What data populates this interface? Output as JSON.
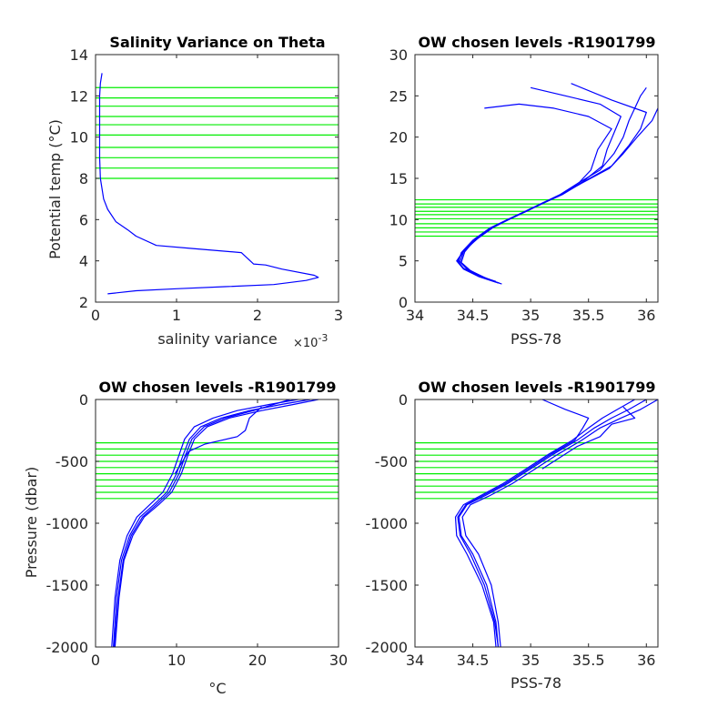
{
  "figure": {
    "colors": {
      "profile": "#0000ff",
      "levels": "#00ee00",
      "axes": "#262626"
    }
  },
  "chart_data": [
    {
      "id": "p1",
      "type": "line",
      "title": "Salinity Variance on Theta",
      "xlabel": "salinity variance",
      "x_multiplier": "×10",
      "x_multiplier_exp": "-3",
      "ylabel": "Potential temp (°C)",
      "xlim": [
        0,
        3
      ],
      "ylim": [
        2,
        14
      ],
      "xticks": [
        0,
        1,
        2,
        3
      ],
      "yticks": [
        2,
        4,
        6,
        8,
        10,
        12,
        14
      ],
      "chosen_levels": [
        8.0,
        8.5,
        9.0,
        9.5,
        10.1,
        10.6,
        11.0,
        11.5,
        11.9,
        12.4
      ],
      "series": [
        {
          "x": [
            0.15,
            0.5,
            1.0,
            1.6,
            2.2,
            2.6,
            2.75,
            2.7,
            2.3,
            2.1,
            1.95,
            1.8,
            1.2,
            0.75,
            0.5,
            0.4,
            0.25,
            0.15,
            0.1,
            0.06,
            0.05,
            0.05,
            0.05,
            0.05,
            0.06,
            0.08
          ],
          "y": [
            2.4,
            2.55,
            2.65,
            2.75,
            2.85,
            3.05,
            3.2,
            3.3,
            3.6,
            3.8,
            3.85,
            4.4,
            4.6,
            4.75,
            5.2,
            5.5,
            5.9,
            6.5,
            7.0,
            8.0,
            9.0,
            10.0,
            11.0,
            12.0,
            12.6,
            13.1
          ]
        }
      ]
    },
    {
      "id": "p2",
      "type": "line",
      "title": "OW chosen levels -R1901799",
      "xlabel": "PSS-78",
      "ylabel": "",
      "xlim": [
        34,
        36.1
      ],
      "ylim": [
        0,
        30
      ],
      "xticks": [
        34,
        34.5,
        35,
        35.5,
        36
      ],
      "yticks": [
        0,
        5,
        10,
        15,
        20,
        25,
        30
      ],
      "chosen_levels": [
        8.0,
        8.5,
        9.0,
        9.5,
        10.1,
        10.6,
        11.0,
        11.5,
        11.9,
        12.4
      ],
      "series": [
        {
          "x": [
            34.72,
            34.6,
            34.45,
            34.38,
            34.4,
            34.5,
            34.65,
            34.8,
            34.95,
            35.1,
            35.25,
            35.42,
            35.6,
            35.72,
            35.8,
            35.85,
            35.9,
            35.95,
            36.0
          ],
          "y": [
            2.3,
            3.0,
            4.0,
            5.0,
            6.0,
            7.5,
            9.0,
            10.0,
            11.0,
            12.0,
            13.0,
            14.5,
            16.0,
            18.0,
            20.0,
            22.0,
            23.5,
            25.0,
            26.0
          ]
        },
        {
          "x": [
            34.7,
            34.55,
            34.42,
            34.37,
            34.42,
            34.55,
            34.68,
            34.82,
            34.97,
            35.12,
            35.28,
            35.45,
            35.62,
            35.66,
            35.72,
            35.78,
            35.6,
            35.3,
            35.0
          ],
          "y": [
            2.5,
            3.2,
            4.1,
            5.0,
            6.2,
            7.8,
            9.1,
            10.1,
            11.1,
            12.1,
            13.1,
            14.6,
            16.5,
            18.5,
            20.5,
            22.5,
            24.0,
            25.0,
            26.0
          ]
        },
        {
          "x": [
            34.75,
            34.62,
            34.48,
            34.4,
            34.43,
            34.52,
            34.66,
            34.81,
            34.96,
            35.11,
            35.26,
            35.44,
            35.68,
            35.8,
            35.92,
            36.05,
            36.1
          ],
          "y": [
            2.2,
            2.8,
            3.8,
            4.8,
            6.1,
            7.6,
            9.0,
            10.0,
            11.0,
            12.0,
            13.0,
            14.4,
            16.2,
            18.0,
            20.0,
            22.0,
            23.5
          ]
        },
        {
          "x": [
            34.7,
            34.55,
            34.42,
            34.36,
            34.41,
            34.52,
            34.66,
            34.8,
            34.96,
            35.1,
            35.26,
            35.42,
            35.52,
            35.58,
            35.7,
            35.5,
            35.2,
            34.9,
            34.6
          ],
          "y": [
            2.4,
            3.1,
            4.0,
            5.0,
            6.0,
            7.7,
            9.0,
            10.0,
            11.0,
            12.0,
            13.0,
            14.5,
            16.0,
            18.5,
            21.0,
            22.5,
            23.5,
            24.0,
            23.5
          ]
        },
        {
          "x": [
            34.73,
            34.6,
            34.47,
            34.39,
            34.42,
            34.53,
            34.67,
            34.81,
            34.96,
            35.11,
            35.27,
            35.46,
            35.7,
            35.85,
            35.95,
            36.0,
            35.7,
            35.35
          ],
          "y": [
            2.3,
            2.9,
            3.9,
            4.9,
            6.1,
            7.6,
            9.0,
            10.0,
            11.0,
            12.0,
            13.0,
            14.6,
            16.5,
            19.0,
            21.0,
            23.0,
            24.5,
            26.5
          ]
        }
      ]
    },
    {
      "id": "p3",
      "type": "line",
      "title": "OW chosen levels -R1901799",
      "xlabel": "°C",
      "ylabel": "Pressure (dbar)",
      "xlim": [
        0,
        30
      ],
      "ylim": [
        -2000,
        0
      ],
      "xticks": [
        0,
        10,
        20,
        30
      ],
      "yticks": [
        -2000,
        -1500,
        -1000,
        -500,
        0
      ],
      "chosen_levels": [
        -350,
        -400,
        -450,
        -500,
        -550,
        -600,
        -650,
        -700,
        -750,
        -800
      ],
      "series": [
        {
          "x": [
            2.2,
            2.6,
            3.2,
            4.2,
            5.5,
            7.2,
            8.8,
            10.0,
            10.8,
            11.6,
            13.0,
            15.5,
            19.0,
            23.0,
            26.5
          ],
          "y": [
            -2000,
            -1600,
            -1300,
            -1100,
            -950,
            -850,
            -750,
            -600,
            -450,
            -320,
            -220,
            -150,
            -90,
            -40,
            0
          ]
        },
        {
          "x": [
            2.4,
            2.9,
            3.5,
            4.6,
            6.0,
            7.8,
            9.4,
            10.6,
            11.4,
            12.2,
            13.8,
            16.5,
            20.5,
            24.5,
            27.5
          ],
          "y": [
            -2000,
            -1600,
            -1300,
            -1100,
            -950,
            -850,
            -750,
            -600,
            -450,
            -320,
            -220,
            -150,
            -90,
            -40,
            0
          ]
        },
        {
          "x": [
            2.0,
            2.4,
            3.0,
            3.9,
            5.1,
            6.7,
            8.3,
            9.5,
            10.3,
            11.0,
            12.2,
            14.5,
            17.5,
            21.5,
            25.0
          ],
          "y": [
            -2000,
            -1600,
            -1300,
            -1100,
            -950,
            -850,
            -750,
            -600,
            -450,
            -320,
            -220,
            -150,
            -90,
            -40,
            0
          ]
        },
        {
          "x": [
            2.3,
            2.8,
            3.4,
            4.4,
            5.8,
            7.5,
            9.1,
            10.3,
            11.1,
            11.9,
            13.4,
            16.0,
            19.5,
            22.0,
            24.0
          ],
          "y": [
            -2000,
            -1600,
            -1300,
            -1100,
            -950,
            -850,
            -750,
            -600,
            -450,
            -320,
            -220,
            -150,
            -90,
            -40,
            0
          ]
        },
        {
          "x": [
            9.8,
            11.5,
            13.5,
            15.5,
            17.5,
            18.5,
            19.0,
            20.5
          ],
          "y": [
            -600,
            -420,
            -360,
            -330,
            -300,
            -250,
            -150,
            -60
          ]
        }
      ]
    },
    {
      "id": "p4",
      "type": "line",
      "title": "OW chosen levels -R1901799",
      "xlabel": "PSS-78",
      "ylabel": "",
      "xlim": [
        34,
        36.1
      ],
      "ylim": [
        -2000,
        0
      ],
      "xticks": [
        34,
        34.5,
        35,
        35.5,
        36
      ],
      "yticks": [
        -2000,
        -1500,
        -1000,
        -500,
        0
      ],
      "chosen_levels": [
        -350,
        -400,
        -450,
        -500,
        -550,
        -600,
        -650,
        -700,
        -750,
        -800
      ],
      "series": [
        {
          "x": [
            34.72,
            34.7,
            34.62,
            34.5,
            34.4,
            34.38,
            34.45,
            34.6,
            34.8,
            35.0,
            35.2,
            35.4,
            35.55,
            35.7,
            35.85,
            36.0
          ],
          "y": [
            -2000,
            -1800,
            -1500,
            -1250,
            -1100,
            -950,
            -850,
            -780,
            -680,
            -560,
            -440,
            -330,
            -230,
            -150,
            -80,
            0
          ]
        },
        {
          "x": [
            34.7,
            34.68,
            34.58,
            34.45,
            34.36,
            34.35,
            34.42,
            34.56,
            34.76,
            34.96,
            35.16,
            35.36,
            35.5,
            35.62,
            35.75,
            35.9
          ],
          "y": [
            -2000,
            -1800,
            -1500,
            -1250,
            -1100,
            -950,
            -850,
            -780,
            -680,
            -560,
            -440,
            -330,
            -230,
            -150,
            -80,
            0
          ]
        },
        {
          "x": [
            34.74,
            34.72,
            34.66,
            34.55,
            34.44,
            34.41,
            34.48,
            34.64,
            34.84,
            35.04,
            35.24,
            35.44,
            35.6,
            35.78,
            35.95,
            36.1
          ],
          "y": [
            -2000,
            -1800,
            -1500,
            -1250,
            -1100,
            -950,
            -850,
            -780,
            -680,
            -560,
            -440,
            -330,
            -230,
            -150,
            -80,
            0
          ]
        },
        {
          "x": [
            34.72,
            34.69,
            34.6,
            34.48,
            34.39,
            34.37,
            34.44,
            34.58,
            34.78,
            34.98,
            35.18,
            35.38,
            35.45,
            35.5,
            35.3,
            35.1
          ],
          "y": [
            -2000,
            -1800,
            -1500,
            -1250,
            -1100,
            -950,
            -850,
            -780,
            -680,
            -560,
            -440,
            -330,
            -230,
            -150,
            -80,
            0
          ]
        },
        {
          "x": [
            35.1,
            35.4,
            35.6,
            35.7,
            35.9,
            35.8
          ],
          "y": [
            -560,
            -380,
            -300,
            -200,
            -150,
            -60
          ]
        }
      ]
    }
  ]
}
